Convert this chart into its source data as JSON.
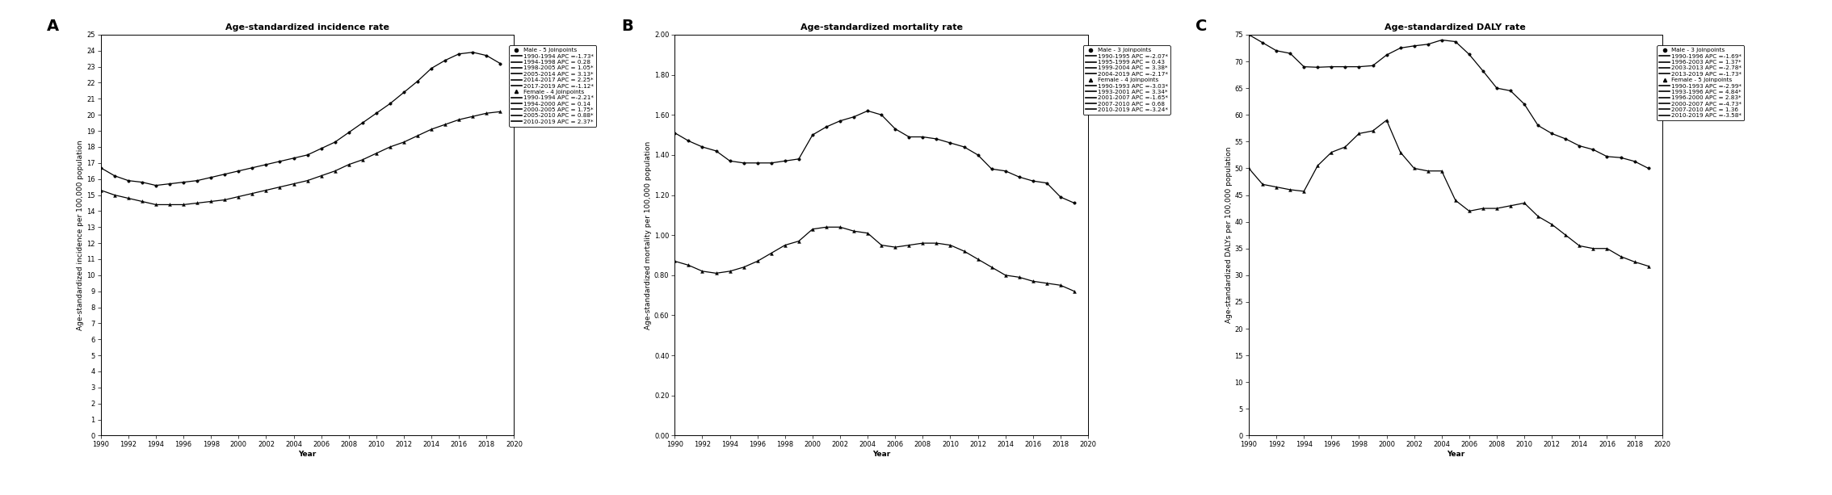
{
  "panel_A": {
    "title": "Age-standardized incidence rate",
    "ylabel": "Age-standardized incidence per 100,000 population",
    "xlabel": "Year",
    "ylim": [
      0,
      25
    ],
    "yticks": [
      0,
      1,
      2,
      3,
      4,
      5,
      6,
      7,
      8,
      9,
      10,
      11,
      12,
      13,
      14,
      15,
      16,
      17,
      18,
      19,
      20,
      21,
      22,
      23,
      24,
      25
    ],
    "xlim": [
      1990,
      2020
    ],
    "xticks": [
      1990,
      1992,
      1994,
      1996,
      1998,
      2000,
      2002,
      2004,
      2006,
      2008,
      2010,
      2012,
      2014,
      2016,
      2018,
      2020
    ],
    "male_years": [
      1990,
      1991,
      1992,
      1993,
      1994,
      1995,
      1996,
      1997,
      1998,
      1999,
      2000,
      2001,
      2002,
      2003,
      2004,
      2005,
      2006,
      2007,
      2008,
      2009,
      2010,
      2011,
      2012,
      2013,
      2014,
      2015,
      2016,
      2017,
      2018,
      2019
    ],
    "male_values": [
      16.7,
      16.2,
      15.9,
      15.8,
      15.6,
      15.7,
      15.8,
      15.9,
      16.1,
      16.3,
      16.5,
      16.7,
      16.9,
      17.1,
      17.3,
      17.5,
      17.9,
      18.3,
      18.9,
      19.5,
      20.1,
      20.7,
      21.4,
      22.1,
      22.9,
      23.4,
      23.8,
      23.9,
      23.7,
      23.2
    ],
    "female_years": [
      1990,
      1991,
      1992,
      1993,
      1994,
      1995,
      1996,
      1997,
      1998,
      1999,
      2000,
      2001,
      2002,
      2003,
      2004,
      2005,
      2006,
      2007,
      2008,
      2009,
      2010,
      2011,
      2012,
      2013,
      2014,
      2015,
      2016,
      2017,
      2018,
      2019
    ],
    "female_values": [
      15.3,
      15.0,
      14.8,
      14.6,
      14.4,
      14.4,
      14.4,
      14.5,
      14.6,
      14.7,
      14.9,
      15.1,
      15.3,
      15.5,
      15.7,
      15.9,
      16.2,
      16.5,
      16.9,
      17.2,
      17.6,
      18.0,
      18.3,
      18.7,
      19.1,
      19.4,
      19.7,
      19.9,
      20.1,
      20.2
    ],
    "legend": [
      "Male - 5 Joinpoints",
      "1990-1994 APC =-1.73*",
      "1994-1998 APC = 0.28",
      "1998-2005 APC = 1.05*",
      "2005-2014 APC = 3.13*",
      "2014-2017 APC = 2.25*",
      "2017-2019 APC =-1.12*",
      "Female - 4 Joinpoints",
      "1990-1994 APC =-2.21*",
      "1994-2000 APC = 0.14",
      "2000-2005 APC = 1.75*",
      "2005-2010 APC = 0.88*",
      "2010-2019 APC = 2.37*"
    ]
  },
  "panel_B": {
    "title": "Age-standardized mortality rate",
    "ylabel": "Age-standardized mortality per 100,000 population",
    "xlabel": "Year",
    "ylim": [
      0.0,
      2.0
    ],
    "yticks": [
      0.0,
      0.2,
      0.4,
      0.6,
      0.8,
      1.0,
      1.2,
      1.4,
      1.6,
      1.8,
      2.0
    ],
    "xlim": [
      1990,
      2020
    ],
    "xticks": [
      1990,
      1992,
      1994,
      1996,
      1998,
      2000,
      2002,
      2004,
      2006,
      2008,
      2010,
      2012,
      2014,
      2016,
      2018,
      2020
    ],
    "male_years": [
      1990,
      1991,
      1992,
      1993,
      1994,
      1995,
      1996,
      1997,
      1998,
      1999,
      2000,
      2001,
      2002,
      2003,
      2004,
      2005,
      2006,
      2007,
      2008,
      2009,
      2010,
      2011,
      2012,
      2013,
      2014,
      2015,
      2016,
      2017,
      2018,
      2019
    ],
    "male_values": [
      1.51,
      1.47,
      1.44,
      1.42,
      1.37,
      1.36,
      1.36,
      1.36,
      1.37,
      1.38,
      1.5,
      1.54,
      1.57,
      1.59,
      1.62,
      1.6,
      1.53,
      1.49,
      1.49,
      1.48,
      1.46,
      1.44,
      1.4,
      1.33,
      1.32,
      1.29,
      1.27,
      1.26,
      1.19,
      1.16
    ],
    "female_years": [
      1990,
      1991,
      1992,
      1993,
      1994,
      1995,
      1996,
      1997,
      1998,
      1999,
      2000,
      2001,
      2002,
      2003,
      2004,
      2005,
      2006,
      2007,
      2008,
      2009,
      2010,
      2011,
      2012,
      2013,
      2014,
      2015,
      2016,
      2017,
      2018,
      2019
    ],
    "female_values": [
      0.87,
      0.85,
      0.82,
      0.81,
      0.82,
      0.84,
      0.87,
      0.91,
      0.95,
      0.97,
      1.03,
      1.04,
      1.04,
      1.02,
      1.01,
      0.95,
      0.94,
      0.95,
      0.96,
      0.96,
      0.95,
      0.92,
      0.88,
      0.84,
      0.8,
      0.79,
      0.77,
      0.76,
      0.75,
      0.72
    ],
    "legend": [
      "Male - 3 Joinpoints",
      "1990-1995 APC =-2.07*",
      "1995-1999 APC = 0.43",
      "1999-2004 APC = 3.38*",
      "2004-2019 APC =-2.17*",
      "Female - 4 Joinpoints",
      "1990-1993 APC =-3.03*",
      "1993-2001 APC = 3.34*",
      "2001-2007 APC =-1.65*",
      "2007-2010 APC = 0.68",
      "2010-2019 APC =-3.24*"
    ]
  },
  "panel_C": {
    "title": "Age-standardized DALY rate",
    "ylabel": "Age-standardized DALYs per 100,000 population",
    "xlabel": "Year",
    "ylim": [
      0,
      75
    ],
    "yticks": [
      0,
      5,
      10,
      15,
      20,
      25,
      30,
      35,
      40,
      45,
      50,
      55,
      60,
      65,
      70,
      75
    ],
    "xlim": [
      1990,
      2020
    ],
    "xticks": [
      1990,
      1992,
      1994,
      1996,
      1998,
      2000,
      2002,
      2004,
      2006,
      2008,
      2010,
      2012,
      2014,
      2016,
      2018,
      2020
    ],
    "male_years": [
      1990,
      1991,
      1992,
      1993,
      1994,
      1995,
      1996,
      1997,
      1998,
      1999,
      2000,
      2001,
      2002,
      2003,
      2004,
      2005,
      2006,
      2007,
      2008,
      2009,
      2010,
      2011,
      2012,
      2013,
      2014,
      2015,
      2016,
      2017,
      2018,
      2019
    ],
    "male_values": [
      75.0,
      73.5,
      72.0,
      71.5,
      69.0,
      68.9,
      69.0,
      69.0,
      69.0,
      69.2,
      71.2,
      72.5,
      72.9,
      73.2,
      74.0,
      73.7,
      71.3,
      68.2,
      65.0,
      64.5,
      62.0,
      58.0,
      56.5,
      55.5,
      54.2,
      53.5,
      52.2,
      52.0,
      51.3,
      50.0
    ],
    "female_years": [
      1990,
      1991,
      1992,
      1993,
      1994,
      1995,
      1996,
      1997,
      1998,
      1999,
      2000,
      2001,
      2002,
      2003,
      2004,
      2005,
      2006,
      2007,
      2008,
      2009,
      2010,
      2011,
      2012,
      2013,
      2014,
      2015,
      2016,
      2017,
      2018,
      2019
    ],
    "female_values": [
      50.0,
      47.0,
      46.5,
      46.0,
      45.7,
      50.5,
      53.0,
      54.0,
      56.5,
      57.0,
      59.0,
      53.0,
      50.0,
      49.5,
      49.5,
      44.0,
      42.0,
      42.5,
      42.5,
      43.0,
      43.5,
      41.0,
      39.5,
      37.5,
      35.5,
      35.0,
      35.0,
      33.5,
      32.5,
      31.7
    ],
    "legend": [
      "Male - 3 Joinpoints",
      "1990-1996 APC =-1.69*",
      "1996-2003 APC = 1.37*",
      "2003-2013 APC =-2.78*",
      "2013-2019 APC =-1.73*",
      "Female - 5 Joinpoints",
      "1990-1993 APC =-2.99*",
      "1993-1996 APC = 4.84*",
      "1996-2000 APC = 2.83*",
      "2000-2007 APC =-4.73*",
      "2007-2010 APC = 1.36",
      "2010-2019 APC =-3.58*"
    ]
  },
  "color": "#000000",
  "line_color": "#000000",
  "bg_color": "#ffffff",
  "font_size": 6.0,
  "title_font_size": 8.0,
  "label_font_size": 6.5,
  "legend_font_size": 5.2,
  "panel_label_fontsize": 14
}
